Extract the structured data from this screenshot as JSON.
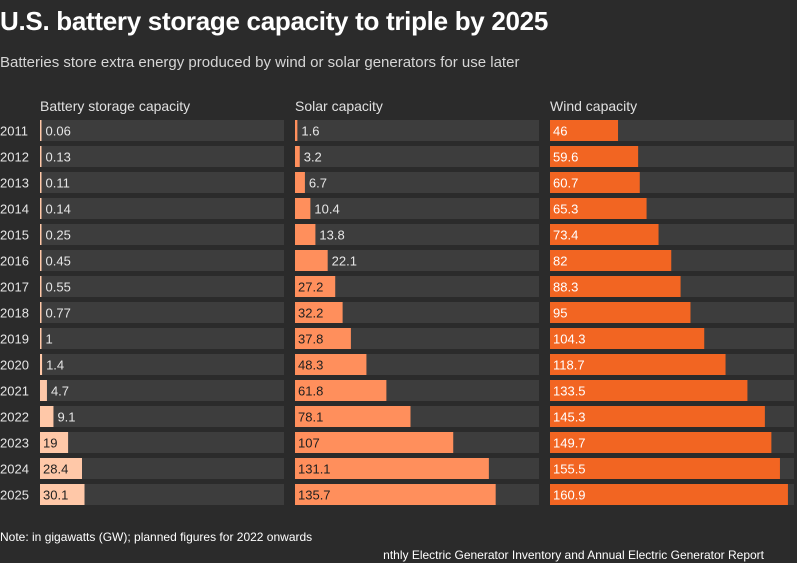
{
  "header": {
    "title": "U.S. battery storage capacity to triple by 2025",
    "subtitle": "Batteries store extra energy produced by wind or solar generators for use later"
  },
  "footer": {
    "note": "Note: in gigawatts (GW); planned figures for 2022 onwards",
    "source": "nthly Electric Generator Inventory and Annual Electric Generator Report"
  },
  "colors": {
    "background": "#2b2b2b",
    "track": "#3d3d3d",
    "battery": "#ffc8a8",
    "solar": "#ff8f5c",
    "wind": "#f26522"
  },
  "chart_data": {
    "type": "bar",
    "orientation": "horizontal",
    "categories": [
      "2011",
      "2012",
      "2013",
      "2014",
      "2015",
      "2016",
      "2017",
      "2018",
      "2019",
      "2020",
      "2021",
      "2022",
      "2023",
      "2024",
      "2025"
    ],
    "series": [
      {
        "name": "Battery storage capacity",
        "values": [
          0.06,
          0.13,
          0.11,
          0.14,
          0.25,
          0.45,
          0.55,
          0.77,
          1,
          1.4,
          4.7,
          9.1,
          19,
          28.4,
          30.1
        ],
        "labels": [
          "0.06",
          "0.13",
          "0.11",
          "0.14",
          "0.25",
          "0.45",
          "0.55",
          "0.77",
          "1",
          "1.4",
          "4.7",
          "9.1",
          "19",
          "28.4",
          "30.1"
        ],
        "xlim": [
          0,
          165
        ]
      },
      {
        "name": "Solar capacity",
        "values": [
          1.6,
          3.2,
          6.7,
          10.4,
          13.8,
          22.1,
          27.2,
          32.2,
          37.8,
          48.3,
          61.8,
          78.1,
          107,
          131.1,
          135.7
        ],
        "labels": [
          "1.6",
          "3.2",
          "6.7",
          "10.4",
          "13.8",
          "22.1",
          "27.2",
          "32.2",
          "37.8",
          "48.3",
          "61.8",
          "78.1",
          "107",
          "131.1",
          "135.7"
        ],
        "xlim": [
          0,
          165
        ]
      },
      {
        "name": "Wind capacity",
        "values": [
          46,
          59.6,
          60.7,
          65.3,
          73.4,
          82,
          88.3,
          95,
          104.3,
          118.7,
          133.5,
          145.3,
          149.7,
          155.5,
          160.9
        ],
        "labels": [
          "46",
          "59.6",
          "60.7",
          "65.3",
          "73.4",
          "82",
          "88.3",
          "95",
          "104.3",
          "118.7",
          "133.5",
          "145.3",
          "149.7",
          "155.5",
          "160.9"
        ],
        "xlim": [
          0,
          165
        ]
      }
    ],
    "grid": false,
    "legend": "none"
  }
}
